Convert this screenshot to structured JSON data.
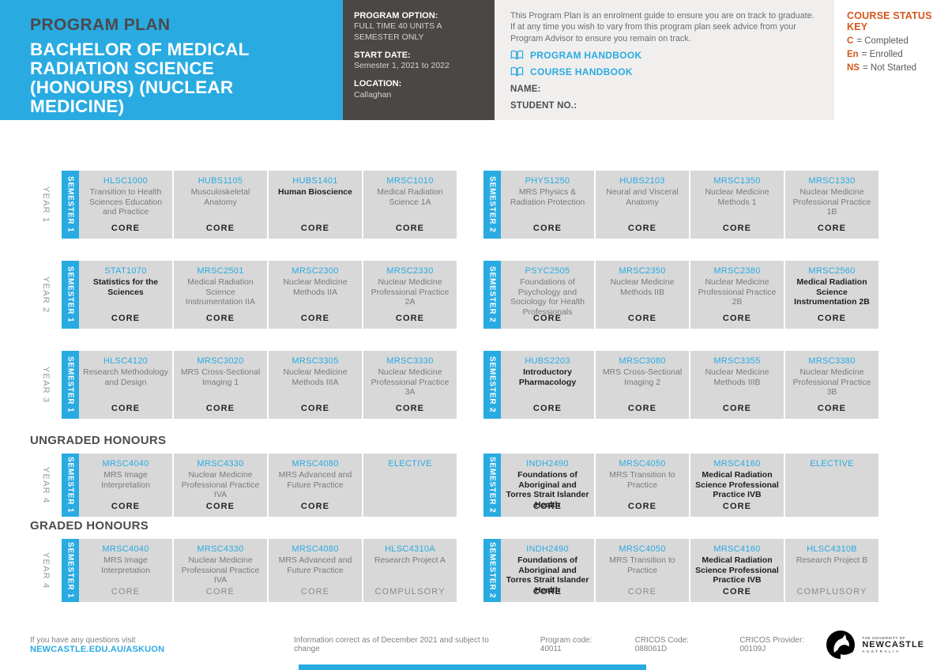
{
  "header": {
    "kicker": "PROGRAM PLAN",
    "title": "BACHELOR OF MEDICAL RADIATION SCIENCE (HONOURS) (NUCLEAR MEDICINE)",
    "option": {
      "label": "PROGRAM OPTION:",
      "value": "FULL TIME 40 UNITS A SEMESTER ONLY"
    },
    "start": {
      "label": "START DATE:",
      "value": "Semester 1, 2021 to 2022"
    },
    "location": {
      "label": "LOCATION:",
      "value": "Callaghan"
    },
    "intro": "This Program Plan is an enrolment guide to ensure you are on track to graduate. If at any time you wish to vary from this program plan seek advice from your Program Advisor to ensure you remain on track.",
    "links": [
      {
        "label": "PROGRAM HANDBOOK"
      },
      {
        "label": "COURSE HANDBOOK"
      }
    ],
    "name_label": "NAME:",
    "student_label": "STUDENT NO.:",
    "key": {
      "title": "COURSE STATUS KEY",
      "items": [
        {
          "code": "C",
          "label": "= Completed"
        },
        {
          "code": "En",
          "label": "= Enrolled"
        },
        {
          "code": "NS",
          "label": "= Not Started"
        }
      ]
    }
  },
  "plan": {
    "sections": [
      {
        "heading": null,
        "rows": [
          {
            "year": "YEAR 1",
            "blocks": [
              {
                "semester": "SEMESTER 1",
                "courses": [
                  {
                    "code": "HLSC1000",
                    "title": "Transition to Health Sciences Education and Practice",
                    "status": "CORE"
                  },
                  {
                    "code": "HUBS1105",
                    "title": "Musculoskeletal Anatomy",
                    "status": "CORE"
                  },
                  {
                    "code": "HUBS1401",
                    "title": "Human Bioscience",
                    "status": "CORE",
                    "bold": true
                  },
                  {
                    "code": "MRSC1010",
                    "title": "Medical Radiation Science 1A",
                    "status": "CORE"
                  }
                ]
              },
              {
                "semester": "SEMESTER 2",
                "courses": [
                  {
                    "code": "PHYS1250",
                    "title": "MRS Physics & Radiation Protection",
                    "status": "CORE"
                  },
                  {
                    "code": "HUBS2103",
                    "title": "Neural and Visceral Anatomy",
                    "status": "CORE"
                  },
                  {
                    "code": "MRSC1350",
                    "title": "Nuclear Medicine Methods 1",
                    "status": "CORE"
                  },
                  {
                    "code": "MRSC1330",
                    "title": "Nuclear Medicine Professional Practice 1B",
                    "status": "CORE"
                  }
                ]
              }
            ]
          },
          {
            "year": "YEAR 2",
            "blocks": [
              {
                "semester": "SEMESTER 1",
                "courses": [
                  {
                    "code": "STAT1070",
                    "title": "Statistics for the Sciences",
                    "status": "CORE",
                    "bold": true
                  },
                  {
                    "code": "MRSC2501",
                    "title": "Medical Radiation Science Instrumentation IIA",
                    "status": "CORE"
                  },
                  {
                    "code": "MRSC2300",
                    "title": "Nuclear Medicine Methods IIA",
                    "status": "CORE"
                  },
                  {
                    "code": "MRSC2330",
                    "title": "Nuclear Medicine Professional Practice 2A",
                    "status": "CORE"
                  }
                ]
              },
              {
                "semester": "SEMESTER 2",
                "courses": [
                  {
                    "code": "PSYC2505",
                    "title": "Foundations of Psychology and Sociology for Health Professionals",
                    "status": "CORE"
                  },
                  {
                    "code": "MRSC2350",
                    "title": "Nuclear Medicine Methods IIB",
                    "status": "CORE"
                  },
                  {
                    "code": "MRSC2380",
                    "title": "Nuclear Medicine Professional Practice 2B",
                    "status": "CORE"
                  },
                  {
                    "code": "MRSC2560",
                    "title": "Medical Radiation Science Instrumentation 2B",
                    "status": "CORE",
                    "bold": true
                  }
                ]
              }
            ]
          },
          {
            "year": "YEAR 3",
            "gap_sm": true,
            "blocks": [
              {
                "semester": "SEMESTER 1",
                "courses": [
                  {
                    "code": "HLSC4120",
                    "title": "Research Methodology and Design",
                    "status": "CORE"
                  },
                  {
                    "code": "MRSC3020",
                    "title": "MRS Cross-Sectional Imaging 1",
                    "status": "CORE"
                  },
                  {
                    "code": "MRSC3305",
                    "title": "Nuclear Medicine Methods IIIA",
                    "status": "CORE"
                  },
                  {
                    "code": "MRSC3330",
                    "title": "Nuclear Medicine Professional Practice 3A",
                    "status": "CORE"
                  }
                ]
              },
              {
                "semester": "SEMESTER 2",
                "courses": [
                  {
                    "code": "HUBS2203",
                    "title": "Introductory Pharmacology",
                    "status": "CORE",
                    "bold": true
                  },
                  {
                    "code": "MRSC3080",
                    "title": "MRS Cross-Sectional Imaging 2",
                    "status": "CORE"
                  },
                  {
                    "code": "MRSC3355",
                    "title": "Nuclear Medicine Methods IIIB",
                    "status": "CORE"
                  },
                  {
                    "code": "MRSC3380",
                    "title": "Nuclear Medicine Professional Practice 3B",
                    "status": "CORE"
                  }
                ]
              }
            ]
          }
        ]
      },
      {
        "heading": "UNGRADED HONOURS",
        "rows": [
          {
            "year": "YEAR 4",
            "compact": true,
            "blocks": [
              {
                "semester": "SEMESTER 1",
                "courses": [
                  {
                    "code": "MRSC4040",
                    "title": "MRS Image Interpretation",
                    "status": "CORE"
                  },
                  {
                    "code": "MRSC4330",
                    "title": "Nuclear Medicine Professional Practice IVA",
                    "status": "CORE"
                  },
                  {
                    "code": "MRSC4080",
                    "title": "MRS Advanced and Future Practice",
                    "status": "CORE"
                  },
                  {
                    "code": "ELECTIVE",
                    "title": "",
                    "status": ""
                  }
                ]
              },
              {
                "semester": "SEMESTER 2",
                "courses": [
                  {
                    "code": "INDH2490",
                    "title": "Foundations of Aboriginal and Torres Strait Islander Health",
                    "status": "CORE",
                    "bold": true
                  },
                  {
                    "code": "MRSC4050",
                    "title": "MRS Transition to Practice",
                    "status": "CORE"
                  },
                  {
                    "code": "MRSC4160",
                    "title": "Medical Radiation Science Professional Practice IVB",
                    "status": "CORE",
                    "bold": true
                  },
                  {
                    "code": "ELECTIVE",
                    "title": "",
                    "status": ""
                  }
                ]
              }
            ]
          }
        ]
      },
      {
        "heading": "GRADED HONOURS",
        "rows": [
          {
            "year": "YEAR 4",
            "compact": true,
            "blocks": [
              {
                "semester": "SEMESTER 1",
                "courses": [
                  {
                    "code": "MRSC4040",
                    "title": "MRS Image Interpretation",
                    "status": "CORE",
                    "muted": true
                  },
                  {
                    "code": "MRSC4330",
                    "title": "Nuclear Medicine Professional Practice IVA",
                    "status": "CORE",
                    "muted": true
                  },
                  {
                    "code": "MRSC4080",
                    "title": "MRS Advanced and Future Practice",
                    "status": "CORE",
                    "muted": true
                  },
                  {
                    "code": "HLSC4310A",
                    "title": "Research Project A",
                    "status": "COMPULSORY",
                    "muted": true
                  }
                ]
              },
              {
                "semester": "SEMESTER 2",
                "courses": [
                  {
                    "code": "INDH2490",
                    "title": "Foundations of Aboriginal and Torres Strait Islander Health",
                    "status": "CORE",
                    "bold": true
                  },
                  {
                    "code": "MRSC4050",
                    "title": "MRS Transition to Practice",
                    "status": "CORE",
                    "muted": true
                  },
                  {
                    "code": "MRSC4160",
                    "title": "Medical Radiation Science Professional Practice IVB",
                    "status": "CORE",
                    "bold": true
                  },
                  {
                    "code": "HLSC4310B",
                    "title": "Research Project B",
                    "status": "COMPLUSORY",
                    "muted": true
                  }
                ]
              }
            ]
          }
        ]
      }
    ]
  },
  "footer": {
    "prompt": "If you have any questions visit",
    "link": "NEWCASTLE.EDU.AU/ASKUON",
    "info": "Information correct as of December 2021 and subject to change",
    "program_code": "Program code: 40011",
    "cricos_code": "CRICOS Code: 088061D",
    "cricos_provider": "CRICOS Provider: 00109J",
    "logo": {
      "line1": "THE UNIVERSITY OF",
      "line2": "NEWCASTLE",
      "line3": "AUSTRALIA"
    }
  },
  "colors": {
    "accent_blue": "#29ABE2",
    "charcoal": "#4A4745",
    "panel_gray": "#F0EFEE",
    "cell_gray": "#D8D8D8",
    "key_orange": "#D4561C"
  }
}
